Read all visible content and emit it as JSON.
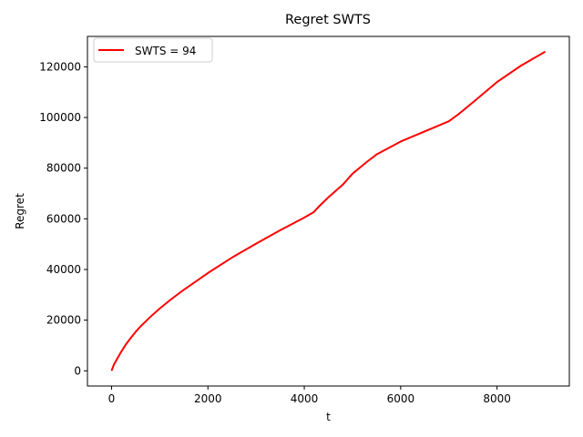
{
  "chart_data": {
    "type": "line",
    "title": "Regret SWTS",
    "xlabel": "t",
    "ylabel": "Regret",
    "xlim": [
      -500,
      9500
    ],
    "ylim": [
      -6000,
      132000
    ],
    "xticks": [
      0,
      2000,
      4000,
      6000,
      8000
    ],
    "xtick_labels": [
      "0",
      "2000",
      "4000",
      "6000",
      "8000"
    ],
    "yticks": [
      0,
      20000,
      40000,
      60000,
      80000,
      100000,
      120000
    ],
    "ytick_labels": [
      "0",
      "20000",
      "40000",
      "60000",
      "80000",
      "100000",
      "120000"
    ],
    "grid": false,
    "legend_position": "top-left",
    "series": [
      {
        "name": "SWTS = 94",
        "color": "#ff0000",
        "x": [
          0,
          50,
          100,
          200,
          300,
          400,
          500,
          600,
          800,
          1000,
          1200,
          1500,
          2000,
          2500,
          3000,
          3500,
          4000,
          4200,
          4300,
          4500,
          4800,
          5000,
          5300,
          5500,
          6000,
          6500,
          7000,
          7200,
          7500,
          8000,
          8500,
          9000
        ],
        "y": [
          0,
          2500,
          4200,
          7500,
          10500,
          13000,
          15400,
          17500,
          21200,
          24600,
          27700,
          32000,
          38600,
          44700,
          50200,
          55500,
          60500,
          62700,
          64800,
          68500,
          73500,
          77800,
          82500,
          85400,
          90500,
          94500,
          98500,
          101300,
          106000,
          114000,
          120500,
          126000
        ]
      }
    ]
  }
}
